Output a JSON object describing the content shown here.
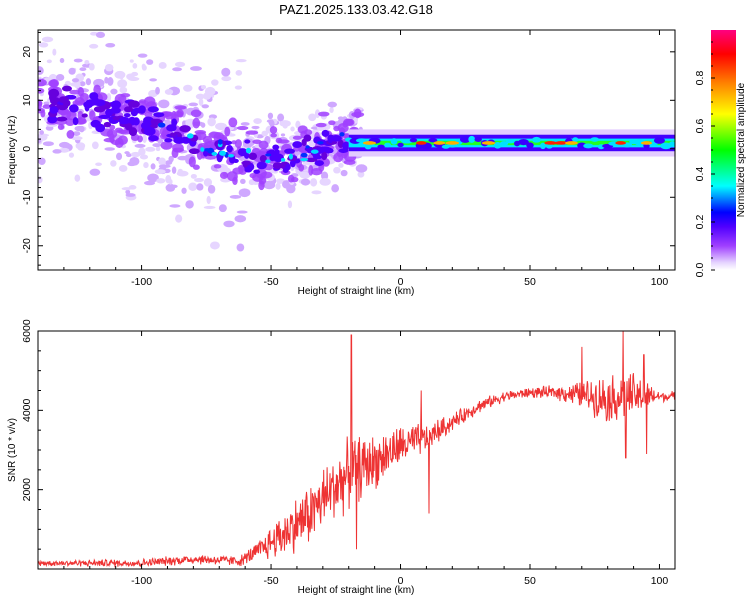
{
  "title": "PAZ1.2025.133.03.42.G18",
  "chart_data": [
    {
      "type": "heatmap",
      "name": "spectrogram",
      "xlabel": "Height of straight line (km)",
      "ylabel": "Frequency (Hz)",
      "xlim": [
        -140,
        106
      ],
      "ylim": [
        -25,
        24.5
      ],
      "xticks": [
        -100,
        -50,
        0,
        50,
        100
      ],
      "yticks": [
        -20,
        -10,
        0,
        10,
        20
      ],
      "colorbar": {
        "label": "Normalized spectral amplitude",
        "range": [
          0,
          1
        ],
        "ticks": [
          0.0,
          0.2,
          0.4,
          0.6,
          0.8
        ],
        "tick_labels": [
          "0.0",
          "0.2",
          "0.4",
          "0.6",
          "0.8"
        ],
        "colormap": [
          "#ffffff",
          "#e6d5ff",
          "#a040ff",
          "#5000ff",
          "#0000ff",
          "#00ffff",
          "#00ff00",
          "#ffff00",
          "#ff8000",
          "#ff0000",
          "#ff0080"
        ]
      },
      "features": {
        "line_frequency_hz": 1.2,
        "line_start_km": -20,
        "noise_region_km": [
          -140,
          -20
        ],
        "noise_center_freq_hz": [
          [
            -140,
            10
          ],
          [
            -120,
            8
          ],
          [
            -100,
            6
          ],
          [
            -85,
            3
          ],
          [
            -70,
            0
          ],
          [
            -55,
            -2
          ],
          [
            -45,
            -2
          ],
          [
            -35,
            -1
          ],
          [
            -25,
            2
          ],
          [
            -20,
            2
          ]
        ]
      }
    },
    {
      "type": "line",
      "name": "snr",
      "xlabel": "Height of straight line (km)",
      "ylabel": "SNR (10 * v/v)",
      "xlim": [
        -140,
        106
      ],
      "ylim": [
        0,
        6000
      ],
      "xticks": [
        -100,
        -50,
        0,
        50,
        100
      ],
      "yticks": [
        2000,
        4000,
        6000
      ],
      "color": "#ee3333",
      "envelope": {
        "x": [
          -140,
          -100,
          -80,
          -62,
          -55,
          -45,
          -35,
          -25,
          -18,
          -10,
          0,
          10,
          20,
          30,
          40,
          50,
          60,
          70,
          80,
          90,
          100,
          106
        ],
        "mean": [
          150,
          150,
          250,
          200,
          450,
          900,
          1400,
          2100,
          2500,
          2700,
          3100,
          3300,
          3700,
          4100,
          4350,
          4450,
          4450,
          4400,
          4300,
          4350,
          4350,
          4350
        ],
        "amplitude": [
          80,
          120,
          150,
          150,
          300,
          700,
          900,
          1000,
          1000,
          800,
          600,
          450,
          250,
          200,
          150,
          150,
          200,
          400,
          700,
          700,
          150,
          150
        ]
      },
      "spikes": [
        {
          "x": -19,
          "y": 5900
        },
        {
          "x": -17,
          "y": 500
        },
        {
          "x": 8,
          "y": 4500
        },
        {
          "x": 11,
          "y": 1400
        },
        {
          "x": 70,
          "y": 5600
        },
        {
          "x": 86,
          "y": 6000
        },
        {
          "x": 87,
          "y": 2800
        },
        {
          "x": 95,
          "y": 2900
        },
        {
          "x": 94,
          "y": 5400
        }
      ]
    }
  ]
}
